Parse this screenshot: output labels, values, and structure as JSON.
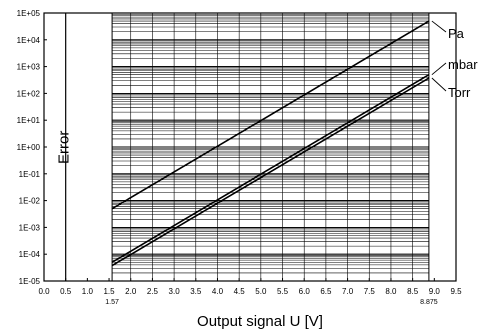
{
  "chart_data": {
    "type": "line",
    "xlabel": "Output signal U [V]",
    "ylabel": "",
    "y_scale": "log",
    "xlim": [
      0.0,
      9.5
    ],
    "ylim": [
      1e-05,
      100000
    ],
    "x_ticks": [
      "0.0",
      "0.5",
      "1.0",
      "1.5",
      "2.0",
      "2.5",
      "3.0",
      "3.5",
      "4.0",
      "4.5",
      "5.0",
      "5.5",
      "6.0",
      "6.5",
      "7.0",
      "7.5",
      "8.0",
      "8.5",
      "9.0",
      "9.5"
    ],
    "x_ticks_extra": [
      "1.57",
      "8.875"
    ],
    "y_ticks": [
      "1E-05",
      "1E-04",
      "1E-03",
      "1E-02",
      "1E-01",
      "1E+00",
      "1E+01",
      "1E+02",
      "1E+03",
      "1E+04",
      "1E+05"
    ],
    "error_region_label": "Error",
    "series": [
      {
        "name": "Pa",
        "x": [
          1.57,
          8.875
        ],
        "y": [
          0.005,
          50000
        ]
      },
      {
        "name": "mbar",
        "x": [
          1.57,
          8.875
        ],
        "y": [
          5e-05,
          500
        ]
      },
      {
        "name": "Torr",
        "x": [
          1.57,
          8.875
        ],
        "y": [
          3.75e-05,
          375
        ]
      }
    ],
    "grid": "dense log grid in valid range 1.57–8.875 V"
  }
}
